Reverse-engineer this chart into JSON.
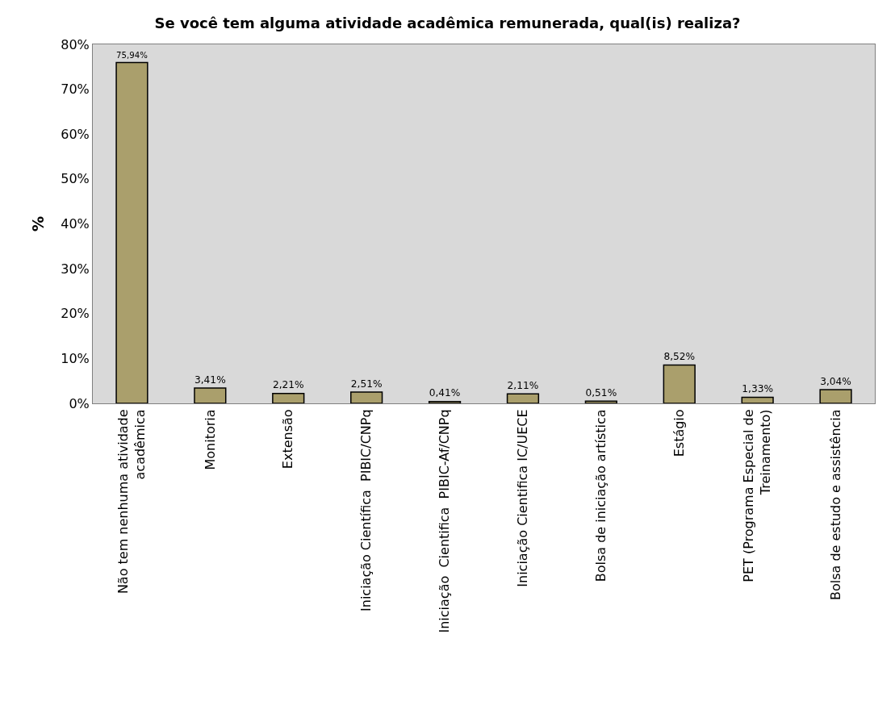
{
  "chart_data": {
    "type": "bar",
    "title": "Se você tem alguma atividade acadêmica remunerada, qual(is) realiza?",
    "ylabel": "%",
    "categories": [
      "Não tem nenhuma atividade\nacadêmica",
      "Monitoria",
      "Extensão",
      "Iniciação Científica  PIBIC/CNPq",
      "Iniciação  Cientifica  PIBIC-Af/CNPq",
      "Iniciação Cientifica IC/UECE",
      "Bolsa de iniciação artística",
      "Estágio",
      "PET (Programa Especial de\nTreinamento)",
      "Bolsa de estudo e assistência"
    ],
    "values": [
      75.94,
      3.41,
      2.21,
      2.51,
      0.41,
      2.11,
      0.51,
      8.52,
      1.33,
      3.04
    ],
    "value_labels": [
      "75,94%",
      "3,41%",
      "2,21%",
      "2,51%",
      "0,41%",
      "2,11%",
      "0,51%",
      "8,52%",
      "1,33%",
      "3,04%"
    ],
    "color": "#aa9f6c",
    "ylim": [
      0,
      80
    ],
    "yticks": [
      {
        "value": 0,
        "label": "0%"
      },
      {
        "value": 10,
        "label": "10%"
      },
      {
        "value": 20,
        "label": "20%"
      },
      {
        "value": 30,
        "label": "30%"
      },
      {
        "value": 40,
        "label": "40%"
      },
      {
        "value": 50,
        "label": "50%"
      },
      {
        "value": 60,
        "label": "60%"
      },
      {
        "value": 70,
        "label": "70%"
      },
      {
        "value": 80,
        "label": "80%"
      }
    ],
    "grid": false
  }
}
